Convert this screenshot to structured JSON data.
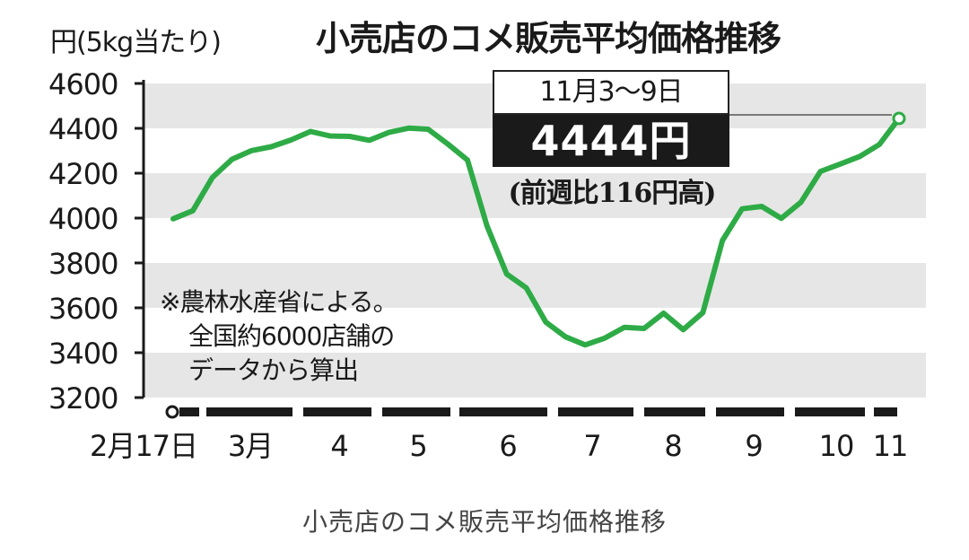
{
  "chart_data": {
    "type": "line",
    "title": "小売店のコメ販売平均価格推移",
    "ylabel": "円(5kg当たり)",
    "ylim": [
      3200,
      4600
    ],
    "yticks": [
      3200,
      3400,
      3600,
      3800,
      4000,
      4200,
      4400,
      4600
    ],
    "x_labels": [
      "2月17日",
      "3月",
      "4",
      "5",
      "6",
      "7",
      "8",
      "9",
      "10",
      "11"
    ],
    "series": [
      {
        "color": "#2eab46",
        "values": [
          3997,
          4033,
          4181,
          4262,
          4301,
          4318,
          4348,
          4386,
          4366,
          4364,
          4347,
          4382,
          4401,
          4396,
          4330,
          4259,
          3965,
          3751,
          3689,
          3536,
          3471,
          3435,
          3465,
          3513,
          3508,
          3576,
          3503,
          3579,
          3900,
          4041,
          4052,
          3999,
          4071,
          4208,
          4241,
          4275,
          4328,
          4444
        ]
      }
    ],
    "highlight": {
      "period": "11月3〜9日",
      "value": "4444円",
      "change": "(前週比116円高)"
    },
    "note": [
      "※農林水産省による。",
      "全国約6000店舗の",
      "データから算出"
    ],
    "grid": "alternating gray bands",
    "colors": {
      "line": "#2eab46",
      "band": "#e6e6e6",
      "text": "#1a1a1a"
    }
  },
  "caption": "小売店のコメ販売平均価格推移"
}
